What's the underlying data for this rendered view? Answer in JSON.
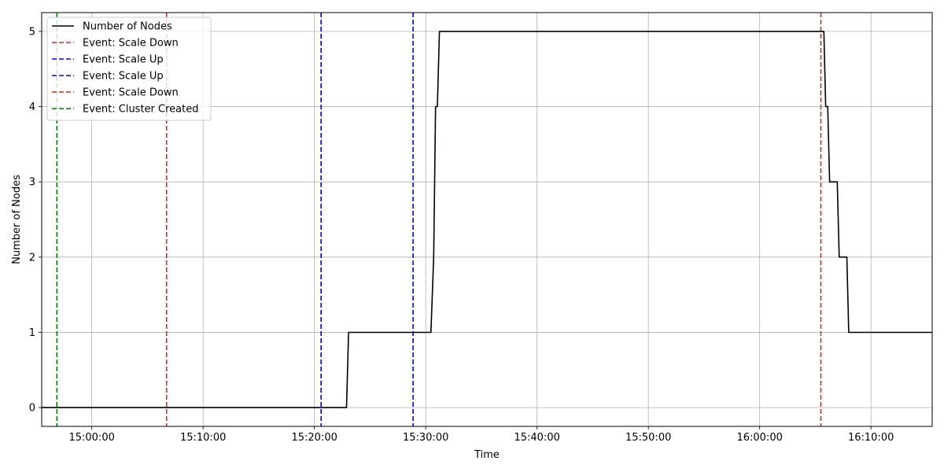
{
  "chart_data": {
    "type": "line",
    "title": "",
    "xlabel": "Time",
    "ylabel": "Number of Nodes",
    "x_unit": "minutes",
    "xlim": [
      "14:55:30",
      "16:15:30"
    ],
    "ylim": [
      -0.25,
      5.25
    ],
    "x_ticks": [
      "15:00:00",
      "15:10:00",
      "15:20:00",
      "15:30:00",
      "15:40:00",
      "15:50:00",
      "16:00:00",
      "16:10:00"
    ],
    "y_ticks": [
      0,
      1,
      2,
      3,
      4,
      5
    ],
    "grid": true,
    "legend_position": "top-left",
    "series": [
      {
        "name": "Number of Nodes",
        "color": "#000000",
        "style": "solid",
        "points": [
          {
            "x": "14:55:30",
            "y": 0
          },
          {
            "x": "15:22:53",
            "y": 0
          },
          {
            "x": "15:23:04",
            "y": 1
          },
          {
            "x": "15:30:28",
            "y": 1
          },
          {
            "x": "15:30:43",
            "y": 2
          },
          {
            "x": "15:30:53",
            "y": 4
          },
          {
            "x": "15:31:03",
            "y": 4
          },
          {
            "x": "15:31:14",
            "y": 5
          },
          {
            "x": "16:05:46",
            "y": 5
          },
          {
            "x": "16:05:56",
            "y": 4
          },
          {
            "x": "16:06:07",
            "y": 4
          },
          {
            "x": "16:06:17",
            "y": 3
          },
          {
            "x": "16:06:58",
            "y": 3
          },
          {
            "x": "16:07:09",
            "y": 2
          },
          {
            "x": "16:07:50",
            "y": 2
          },
          {
            "x": "16:08:00",
            "y": 1
          },
          {
            "x": "16:15:30",
            "y": 1
          }
        ]
      }
    ],
    "events": [
      {
        "name": "Event: Scale Down",
        "time": "16:05:30",
        "color": "#d62728"
      },
      {
        "name": "Event: Scale Up",
        "time": "15:20:36",
        "color": "#0000ff"
      },
      {
        "name": "Event: Scale Up",
        "time": "15:28:52",
        "color": "#0000ff"
      },
      {
        "name": "Event: Scale Down",
        "time": "15:06:43",
        "color": "#d62728"
      },
      {
        "name": "Event: Cluster Created",
        "time": "14:56:52",
        "color": "#008000"
      }
    ],
    "legend": [
      {
        "label": "Number of Nodes",
        "color": "#000000",
        "style": "solid"
      },
      {
        "label": "Event: Scale Down",
        "color": "#d62728",
        "style": "dashed"
      },
      {
        "label": "Event: Scale Up",
        "color": "#0000ff",
        "style": "dashed"
      },
      {
        "label": "Event: Scale Up",
        "color": "#0000ff",
        "style": "dashed"
      },
      {
        "label": "Event: Scale Down",
        "color": "#d62728",
        "style": "dashed"
      },
      {
        "label": "Event: Cluster Created",
        "color": "#008000",
        "style": "dashed"
      }
    ]
  }
}
